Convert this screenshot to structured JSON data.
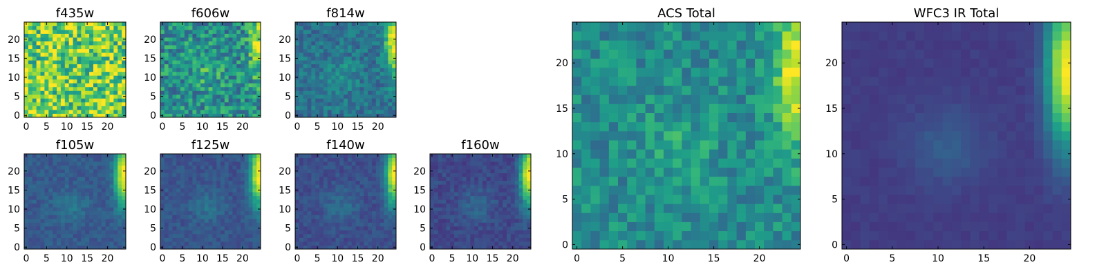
{
  "figure": {
    "background": "#ffffff",
    "colormap": "viridis"
  },
  "chart_data": [
    {
      "type": "heatmap",
      "title": "f435w",
      "grid_size": 25,
      "xlim": [
        -0.5,
        24.5
      ],
      "ylim": [
        -0.5,
        24.5
      ],
      "x_ticks": [
        0,
        5,
        10,
        15,
        20
      ],
      "y_ticks": [
        0,
        5,
        10,
        15,
        20
      ],
      "colormap": "viridis",
      "pattern": "noise",
      "mean_level": 0.78,
      "noise_level": 0.3,
      "peak_level": 0.0
    },
    {
      "type": "heatmap",
      "title": "f606w",
      "grid_size": 25,
      "xlim": [
        -0.5,
        24.5
      ],
      "ylim": [
        -0.5,
        24.5
      ],
      "x_ticks": [
        0,
        5,
        10,
        15,
        20
      ],
      "y_ticks": [
        0,
        5,
        10,
        15,
        20
      ],
      "colormap": "viridis",
      "pattern": "noisy-gradient",
      "mean_level": 0.5,
      "noise_level": 0.22,
      "peak_level": 0.9
    },
    {
      "type": "heatmap",
      "title": "f814w",
      "grid_size": 25,
      "xlim": [
        -0.5,
        24.5
      ],
      "ylim": [
        -0.5,
        24.5
      ],
      "x_ticks": [
        0,
        5,
        10,
        15,
        20
      ],
      "y_ticks": [
        0,
        5,
        10,
        15,
        20
      ],
      "colormap": "viridis",
      "pattern": "gradient",
      "mean_level": 0.38,
      "noise_level": 0.12,
      "peak_level": 1.0
    },
    {
      "type": "heatmap",
      "title": "f105w",
      "grid_size": 25,
      "xlim": [
        -0.5,
        24.5
      ],
      "ylim": [
        -0.5,
        24.5
      ],
      "x_ticks": [
        0,
        5,
        10,
        15,
        20
      ],
      "y_ticks": [
        0,
        5,
        10,
        15,
        20
      ],
      "colormap": "viridis",
      "pattern": "gradient",
      "mean_level": 0.28,
      "noise_level": 0.06,
      "peak_level": 1.0
    },
    {
      "type": "heatmap",
      "title": "f125w",
      "grid_size": 25,
      "xlim": [
        -0.5,
        24.5
      ],
      "ylim": [
        -0.5,
        24.5
      ],
      "x_ticks": [
        0,
        5,
        10,
        15,
        20
      ],
      "y_ticks": [
        0,
        5,
        10,
        15,
        20
      ],
      "colormap": "viridis",
      "pattern": "gradient",
      "mean_level": 0.26,
      "noise_level": 0.06,
      "peak_level": 1.0
    },
    {
      "type": "heatmap",
      "title": "f140w",
      "grid_size": 25,
      "xlim": [
        -0.5,
        24.5
      ],
      "ylim": [
        -0.5,
        24.5
      ],
      "x_ticks": [
        0,
        5,
        10,
        15,
        20
      ],
      "y_ticks": [
        0,
        5,
        10,
        15,
        20
      ],
      "colormap": "viridis",
      "pattern": "gradient",
      "mean_level": 0.24,
      "noise_level": 0.06,
      "peak_level": 1.0
    },
    {
      "type": "heatmap",
      "title": "f160w",
      "grid_size": 25,
      "xlim": [
        -0.5,
        24.5
      ],
      "ylim": [
        -0.5,
        24.5
      ],
      "x_ticks": [
        0,
        5,
        10,
        15,
        20
      ],
      "y_ticks": [
        0,
        5,
        10,
        15,
        20
      ],
      "colormap": "viridis",
      "pattern": "gradient",
      "mean_level": 0.22,
      "noise_level": 0.06,
      "peak_level": 1.0
    },
    {
      "type": "heatmap",
      "title": "ACS Total",
      "grid_size": 25,
      "xlim": [
        -0.5,
        24.5
      ],
      "ylim": [
        -0.5,
        24.5
      ],
      "x_ticks": [
        0,
        5,
        10,
        15,
        20
      ],
      "y_ticks": [
        0,
        5,
        10,
        15,
        20
      ],
      "colormap": "viridis",
      "pattern": "noisy-gradient",
      "mean_level": 0.48,
      "noise_level": 0.14,
      "peak_level": 1.0
    },
    {
      "type": "heatmap",
      "title": "WFC3 IR Total",
      "grid_size": 25,
      "xlim": [
        -0.5,
        24.5
      ],
      "ylim": [
        -0.5,
        24.5
      ],
      "x_ticks": [
        0,
        5,
        10,
        15,
        20
      ],
      "y_ticks": [
        0,
        5,
        10,
        15,
        20
      ],
      "colormap": "viridis",
      "pattern": "smooth-gradient",
      "mean_level": 0.18,
      "noise_level": 0.02,
      "peak_level": 1.0
    }
  ]
}
